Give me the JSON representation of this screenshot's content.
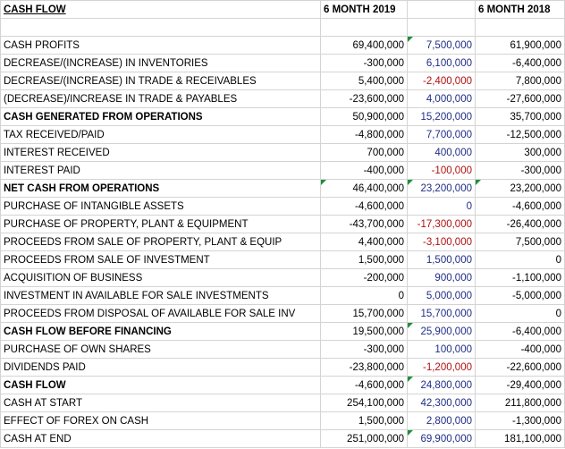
{
  "header": {
    "title": "CASH FLOW",
    "col_2019": "6 MONTH 2019",
    "col_2018": "6 MONTH 2018"
  },
  "colors": {
    "mid_positive": "#1f2d86",
    "mid_negative": "#b01010",
    "cell_marker": "#1e8f3a"
  },
  "rows": [
    {
      "label": "CASH PROFITS",
      "y2019": "69,400,000",
      "mid": "7,500,000",
      "y2018": "61,900,000"
    },
    {
      "label": "DECREASE/(INCREASE) IN INVENTORIES",
      "y2019": "-300,000",
      "mid": "6,100,000",
      "y2018": "-6,400,000"
    },
    {
      "label": "DECREASE/(INCREASE) IN TRADE & RECEIVABLES",
      "y2019": "5,400,000",
      "mid": "-2,400,000",
      "y2018": "7,800,000"
    },
    {
      "label": "(DECREASE)/INCREASE IN TRADE & PAYABLES",
      "y2019": "-23,600,000",
      "mid": "4,000,000",
      "y2018": "-27,600,000"
    },
    {
      "label": "CASH GENERATED FROM OPERATIONS",
      "y2019": "50,900,000",
      "mid": "15,200,000",
      "y2018": "35,700,000"
    },
    {
      "label": "TAX RECEIVED/PAID",
      "y2019": "-4,800,000",
      "mid": "7,700,000",
      "y2018": "-12,500,000"
    },
    {
      "label": "INTEREST RECEIVED",
      "y2019": "700,000",
      "mid": "400,000",
      "y2018": "300,000"
    },
    {
      "label": "INTEREST PAID",
      "y2019": "-400,000",
      "mid": "-100,000",
      "y2018": "-300,000"
    },
    {
      "label": "NET CASH FROM OPERATIONS",
      "y2019": "46,400,000",
      "mid": "23,200,000",
      "y2018": "23,200,000"
    },
    {
      "label": "PURCHASE OF INTANGIBLE ASSETS",
      "y2019": "-4,600,000",
      "mid": "0",
      "y2018": "-4,600,000"
    },
    {
      "label": "PURCHASE OF PROPERTY, PLANT & EQUIPMENT",
      "y2019": "-43,700,000",
      "mid": "-17,300,000",
      "y2018": "-26,400,000"
    },
    {
      "label": "PROCEEDS FROM SALE OF PROPERTY, PLANT & EQUIP",
      "y2019": "4,400,000",
      "mid": "-3,100,000",
      "y2018": "7,500,000"
    },
    {
      "label": "PROCEEDS FROM SALE OF INVESTMENT",
      "y2019": "1,500,000",
      "mid": "1,500,000",
      "y2018": "0"
    },
    {
      "label": "ACQUISITION OF BUSINESS",
      "y2019": "-200,000",
      "mid": "900,000",
      "y2018": "-1,100,000"
    },
    {
      "label": "INVESTMENT IN AVAILABLE FOR SALE INVESTMENTS",
      "y2019": "0",
      "mid": "5,000,000",
      "y2018": "-5,000,000"
    },
    {
      "label": "PROCEEDS FROM DISPOSAL OF AVAILABLE FOR SALE INV",
      "y2019": "15,700,000",
      "mid": "15,700,000",
      "y2018": "0"
    },
    {
      "label": "CASH FLOW BEFORE FINANCING",
      "y2019": "19,500,000",
      "mid": "25,900,000",
      "y2018": "-6,400,000"
    },
    {
      "label": "PURCHASE OF OWN SHARES",
      "y2019": "-300,000",
      "mid": "100,000",
      "y2018": "-400,000"
    },
    {
      "label": "DIVIDENDS PAID",
      "y2019": "-23,800,000",
      "mid": "-1,200,000",
      "y2018": "-22,600,000"
    },
    {
      "label": "CASH FLOW",
      "y2019": "-4,600,000",
      "mid": "24,800,000",
      "y2018": "-29,400,000"
    },
    {
      "label": "CASH AT START",
      "y2019": "254,100,000",
      "mid": "42,300,000",
      "y2018": "211,800,000"
    },
    {
      "label": "EFFECT OF FOREX ON CASH",
      "y2019": "1,500,000",
      "mid": "2,800,000",
      "y2018": "-1,300,000"
    },
    {
      "label": "CASH AT END",
      "y2019": "251,000,000",
      "mid": "69,900,000",
      "y2018": "181,100,000"
    }
  ]
}
